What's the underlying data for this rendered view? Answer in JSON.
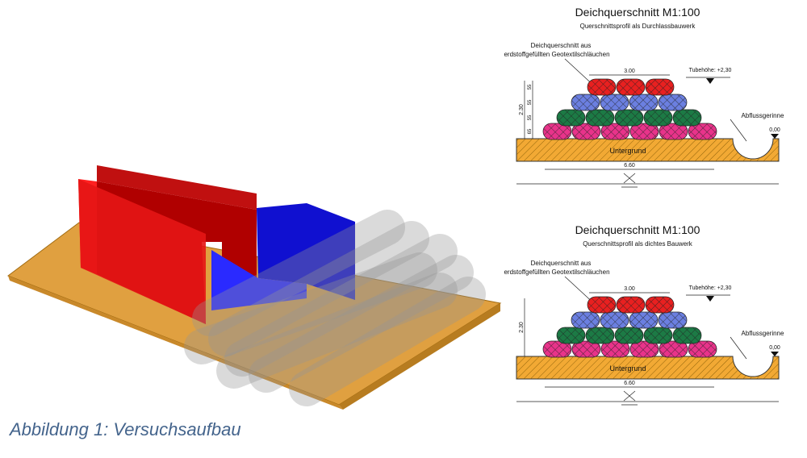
{
  "drawings": [
    {
      "title": "Deichquerschnitt M1:100",
      "subtitle": "Querschnittsprofil als Durchlassbauwerk",
      "label": [
        "Deichquerschnitt aus",
        "erdstoffgefüllten Geotextilschläuchen"
      ],
      "top_width": "3.00",
      "tube_height": "Tubehöhe: +2,30",
      "channel": "Abflussgerinne",
      "zero": "0,00",
      "ground": "Untergrund",
      "base_width": "6.60",
      "height": "2.30",
      "row_heights": [
        "65",
        "55",
        "55",
        "55"
      ]
    },
    {
      "title": "Deichquerschnitt M1:100",
      "subtitle": "Querschnittsprofil als dichtes Bauwerk",
      "label": [
        "Deichquerschnitt aus",
        "erdstoffgefüllten Geotextilschläuchen"
      ],
      "top_width": "3.00",
      "tube_height": "Tubehöhe: +2,30",
      "channel": "Abflussgerinne",
      "zero": "0,00",
      "ground": "Untergrund",
      "base_width": "6.60",
      "height": "2.30"
    }
  ],
  "caption": "Abbildung 1: Versuchsaufbau"
}
